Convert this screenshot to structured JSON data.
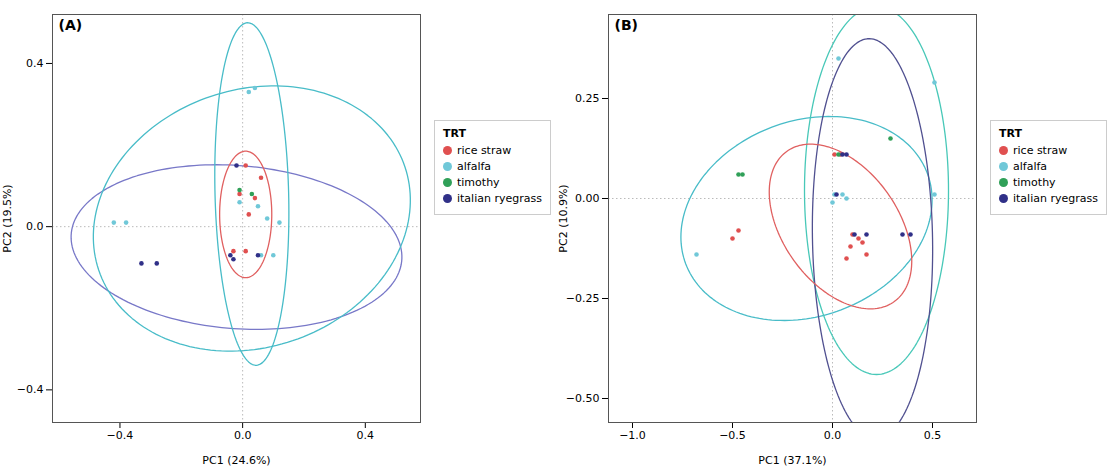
{
  "chart_data": [
    {
      "type": "scatter",
      "title": "(A)",
      "xlabel": "PC1 (24.6%)",
      "ylabel": "PC2 (19.5%)",
      "xlim": [
        -0.62,
        0.58
      ],
      "ylim": [
        -0.48,
        0.52
      ],
      "xticks": [
        {
          "value": -0.4,
          "label": "−0.4"
        },
        {
          "value": 0.0,
          "label": "0.0"
        },
        0.4
      ],
      "yticks": [
        {
          "value": -0.4,
          "label": "−0.4"
        },
        {
          "value": 0.0,
          "label": "0.0"
        },
        0.4
      ],
      "legend": "right",
      "legend_title": "TRT",
      "reference_lines": {
        "x": 0,
        "y": 0
      },
      "series": [
        {
          "name": "rice straw",
          "color": "#e05050",
          "x": [
            0.02,
            0.04,
            -0.01,
            0.01,
            0.06,
            -0.03,
            0.01
          ],
          "y": [
            0.03,
            0.07,
            0.08,
            0.15,
            0.12,
            -0.06,
            -0.06
          ]
        },
        {
          "name": "alfalfa",
          "color": "#70c8d8",
          "x": [
            -0.01,
            0.05,
            0.08,
            0.12,
            0.06,
            0.1,
            0.02,
            0.04,
            -0.42,
            -0.38
          ],
          "y": [
            0.06,
            0.05,
            0.02,
            0.01,
            -0.07,
            -0.07,
            0.33,
            0.34,
            0.01,
            0.01
          ]
        },
        {
          "name": "timothy",
          "color": "#30a058",
          "x": [
            -0.01,
            0.03
          ],
          "y": [
            0.09,
            0.08
          ]
        },
        {
          "name": "italian ryegrass",
          "color": "#303088",
          "x": [
            -0.02,
            -0.04,
            -0.03,
            0.05,
            -0.33,
            -0.28
          ],
          "y": [
            0.15,
            -0.07,
            -0.08,
            -0.07,
            -0.09,
            -0.09
          ]
        }
      ],
      "ellipses": [
        {
          "cx": -0.02,
          "cy": -0.05,
          "rx": 0.54,
          "ry": 0.2,
          "angle": -3,
          "color": "#7878c8"
        },
        {
          "cx": 0.03,
          "cy": 0.02,
          "rx": 0.52,
          "ry": 0.32,
          "angle": 8,
          "color": "#48bcc8"
        },
        {
          "cx": 0.03,
          "cy": 0.08,
          "rx": 0.12,
          "ry": 0.42,
          "angle": 2,
          "color": "#48bcc8"
        },
        {
          "cx": 0.01,
          "cy": 0.03,
          "rx": 0.085,
          "ry": 0.155,
          "angle": 0,
          "color": "#e06060"
        }
      ]
    },
    {
      "type": "scatter",
      "title": "(B)",
      "xlabel": "PC1 (37.1%)",
      "ylabel": "PC2 (10.9%)",
      "xlim": [
        -1.12,
        0.72
      ],
      "ylim": [
        -0.56,
        0.46
      ],
      "xticks": [
        {
          "value": -1.0,
          "label": "−1.0"
        },
        {
          "value": -0.5,
          "label": "−0.5"
        },
        {
          "value": 0.0,
          "label": "0.0"
        },
        0.5
      ],
      "yticks": [
        {
          "value": -0.5,
          "label": "−0.50"
        },
        {
          "value": -0.25,
          "label": "−0.25"
        },
        {
          "value": 0.0,
          "label": "0.00"
        },
        0.25
      ],
      "legend": "right",
      "legend_title": "TRT",
      "reference_lines": {
        "x": 0,
        "y": 0
      },
      "series": [
        {
          "name": "rice straw",
          "color": "#e05050",
          "x": [
            -0.5,
            -0.47,
            0.01,
            0.04,
            0.1,
            0.13,
            0.09,
            0.15,
            0.07,
            0.17
          ],
          "y": [
            -0.1,
            -0.08,
            0.11,
            0.11,
            -0.09,
            -0.1,
            -0.12,
            -0.11,
            -0.15,
            -0.14
          ]
        },
        {
          "name": "alfalfa",
          "color": "#70c8d8",
          "x": [
            -0.68,
            0.01,
            0.05,
            0.0,
            0.07,
            0.03,
            0.51,
            0.51
          ],
          "y": [
            -0.14,
            0.01,
            0.01,
            -0.01,
            0.0,
            0.35,
            0.29,
            0.01
          ]
        },
        {
          "name": "timothy",
          "color": "#30a058",
          "x": [
            -0.47,
            -0.45,
            0.29,
            0.03
          ],
          "y": [
            0.06,
            0.06,
            0.15,
            0.11
          ]
        },
        {
          "name": "italian ryegrass",
          "color": "#303088",
          "x": [
            0.02,
            0.05,
            0.07,
            0.11,
            0.17,
            0.35,
            0.39
          ],
          "y": [
            0.01,
            0.11,
            0.11,
            -0.09,
            -0.09,
            -0.09,
            -0.09
          ]
        }
      ],
      "ellipses": [
        {
          "cx": -0.13,
          "cy": -0.05,
          "rx": 0.63,
          "ry": 0.25,
          "angle": 5,
          "color": "#48bcc8"
        },
        {
          "cx": 0.22,
          "cy": 0.02,
          "rx": 0.36,
          "ry": 0.46,
          "angle": 0,
          "color": "#48c8b8"
        },
        {
          "cx": 0.2,
          "cy": -0.1,
          "rx": 0.3,
          "ry": 0.5,
          "angle": 3,
          "color": "#505090"
        },
        {
          "cx": 0.04,
          "cy": -0.07,
          "rx": 0.37,
          "ry": 0.18,
          "angle": -18,
          "color": "#e06060"
        }
      ]
    }
  ]
}
